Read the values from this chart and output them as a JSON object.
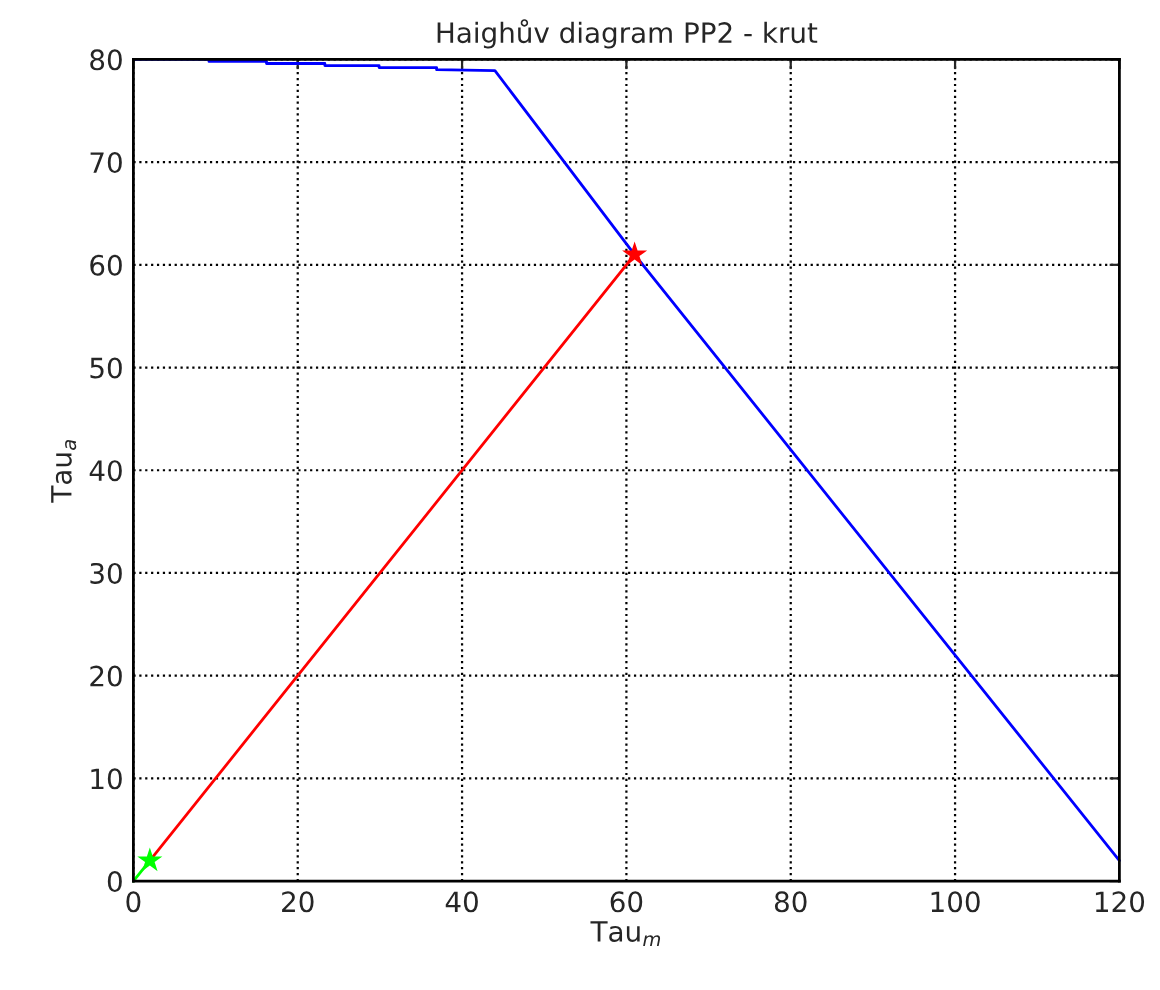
{
  "chart_data": {
    "type": "line",
    "title": "Haighův diagram PP2 - krut",
    "xlabel": "Tau$_{m}$",
    "ylabel": "Tau$_{a}$",
    "xlim": [
      0,
      120
    ],
    "ylim": [
      0,
      80
    ],
    "xticks": [
      0,
      20,
      40,
      60,
      80,
      100,
      120
    ],
    "yticks": [
      0,
      10,
      20,
      30,
      40,
      50,
      60,
      70,
      80
    ],
    "grid": true,
    "legend": false,
    "series": [
      {
        "color": "#0000ff",
        "marker": "none",
        "x": [
          0,
          9.2,
          9.2,
          16.2,
          16.2,
          23.3,
          23.3,
          29.9,
          29.9,
          36.9,
          36.9,
          44,
          61,
          120
        ],
        "values": [
          80,
          80,
          79.8,
          79.8,
          79.6,
          79.6,
          79.4,
          79.4,
          79.2,
          79.2,
          79.0,
          78.9,
          61,
          2
        ]
      },
      {
        "color": "#ff0000",
        "marker": "none",
        "x": [
          2,
          61
        ],
        "values": [
          2,
          61
        ]
      },
      {
        "color": "#00ff00",
        "marker": "none",
        "x": [
          0,
          2
        ],
        "values": [
          0,
          2
        ]
      },
      {
        "type": "scatter",
        "color": "#ff0000",
        "marker": "star",
        "x": [
          61
        ],
        "values": [
          61
        ]
      },
      {
        "type": "scatter",
        "color": "#00ff00",
        "marker": "star",
        "x": [
          2
        ],
        "values": [
          2
        ]
      }
    ]
  }
}
